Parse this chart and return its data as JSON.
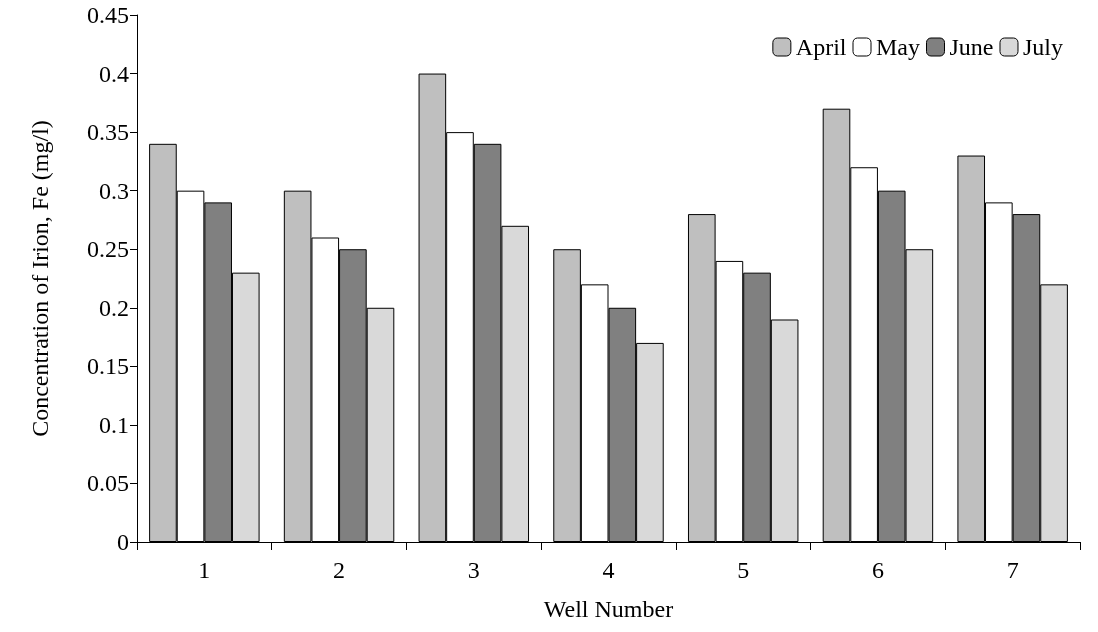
{
  "chart_data": {
    "type": "bar",
    "xlabel": "Well Number",
    "ylabel": "Concentration of Irion, Fe (mg/l)",
    "categories": [
      "1",
      "2",
      "3",
      "4",
      "5",
      "6",
      "7"
    ],
    "series": [
      {
        "name": "April",
        "color": "#bfbfbf",
        "values": [
          0.34,
          0.3,
          0.4,
          0.25,
          0.28,
          0.37,
          0.33
        ]
      },
      {
        "name": "May",
        "color": "#ffffff",
        "values": [
          0.3,
          0.26,
          0.35,
          0.22,
          0.24,
          0.32,
          0.29
        ]
      },
      {
        "name": "June",
        "color": "#808080",
        "values": [
          0.29,
          0.25,
          0.34,
          0.2,
          0.23,
          0.3,
          0.28
        ]
      },
      {
        "name": "July",
        "color": "#d9d9d9",
        "values": [
          0.23,
          0.2,
          0.27,
          0.17,
          0.19,
          0.25,
          0.22
        ]
      }
    ],
    "ylim": [
      0,
      0.45
    ],
    "yticks": [
      0,
      0.05,
      0.1,
      0.15,
      0.2,
      0.25,
      0.3,
      0.35,
      0.4,
      0.45
    ],
    "grid": false,
    "legend": "top right"
  }
}
